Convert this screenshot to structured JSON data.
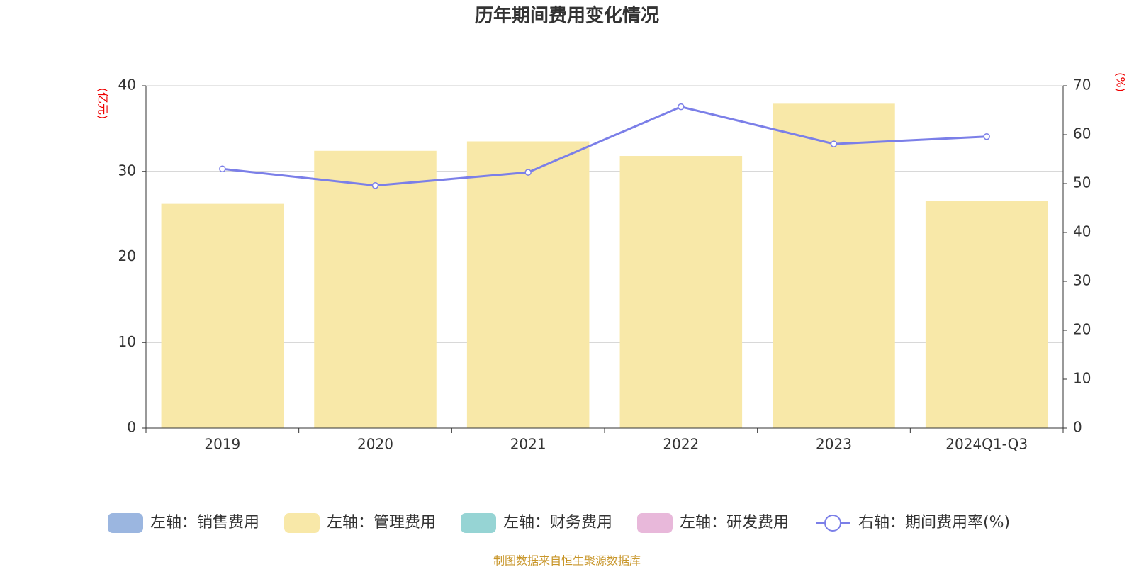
{
  "chart_data": {
    "type": "bar_line",
    "title": "历年期间费用变化情况",
    "y_label": "(亿元)",
    "y2_label": "(%)",
    "categories": [
      "2019",
      "2020",
      "2021",
      "2022",
      "2023",
      "2024Q1-Q3"
    ],
    "series": [
      {
        "name": "左轴：销售费用",
        "color": "#9bb6e0",
        "type": "bar",
        "values": [
          null,
          null,
          null,
          null,
          null,
          null
        ]
      },
      {
        "name": "左轴：管理费用",
        "color": "#f8e8a8",
        "type": "bar",
        "values": [
          26.2,
          32.4,
          33.5,
          31.8,
          37.9,
          26.5
        ]
      },
      {
        "name": "左轴：财务费用",
        "color": "#96d4d4",
        "type": "bar",
        "values": [
          null,
          null,
          null,
          null,
          null,
          null
        ]
      },
      {
        "name": "左轴：研发费用",
        "color": "#e8b8da",
        "type": "bar",
        "values": [
          null,
          null,
          null,
          null,
          null,
          null
        ]
      },
      {
        "name": "右轴：期间费用率(%)",
        "color": "#7b7fe8",
        "type": "line",
        "axis": "y2",
        "values": [
          53.0,
          49.6,
          52.3,
          65.7,
          58.1,
          59.6
        ]
      }
    ],
    "ylim": [
      0,
      40
    ],
    "yticks": [
      0,
      10,
      20,
      30,
      40
    ],
    "y2lim": [
      0,
      70
    ],
    "y2ticks": [
      0,
      10,
      20,
      30,
      40,
      50,
      60,
      70
    ],
    "grid": true,
    "legend": "bottom",
    "source": "制图数据来自恒生聚源数据库"
  }
}
